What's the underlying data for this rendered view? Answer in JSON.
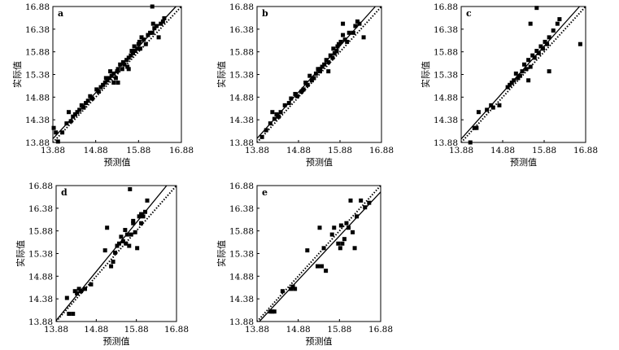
{
  "figure": {
    "x_axis_label": "预测值",
    "y_axis_label": "实际值"
  },
  "chart_data": [
    {
      "type": "scatter",
      "panel": "a",
      "xlabel": "预测值",
      "ylabel": "实际值",
      "xlim": [
        13.88,
        16.88
      ],
      "ylim": [
        13.88,
        16.88
      ],
      "xticks": [
        "13.88",
        "14.88",
        "15.88",
        "16.88"
      ],
      "yticks": [
        "13.88",
        "14.38",
        "14.88",
        "15.38",
        "15.88",
        "16.38",
        "16.88"
      ],
      "lines": [
        "solid",
        "dotted"
      ],
      "points": [
        [
          13.9,
          14.2
        ],
        [
          13.95,
          14.1
        ],
        [
          14.0,
          13.9
        ],
        [
          14.1,
          14.1
        ],
        [
          14.2,
          14.3
        ],
        [
          14.25,
          14.55
        ],
        [
          14.3,
          14.35
        ],
        [
          14.35,
          14.45
        ],
        [
          14.4,
          14.5
        ],
        [
          14.45,
          14.55
        ],
        [
          14.5,
          14.6
        ],
        [
          14.55,
          14.7
        ],
        [
          14.6,
          14.65
        ],
        [
          14.65,
          14.75
        ],
        [
          14.7,
          14.8
        ],
        [
          14.75,
          14.9
        ],
        [
          14.8,
          14.85
        ],
        [
          14.9,
          15.05
        ],
        [
          14.95,
          15.0
        ],
        [
          15.0,
          15.1
        ],
        [
          15.05,
          15.15
        ],
        [
          15.1,
          15.2
        ],
        [
          15.12,
          15.3
        ],
        [
          15.15,
          15.25
        ],
        [
          15.2,
          15.3
        ],
        [
          15.22,
          15.45
        ],
        [
          15.25,
          15.35
        ],
        [
          15.3,
          15.4
        ],
        [
          15.35,
          15.3
        ],
        [
          15.38,
          15.45
        ],
        [
          15.4,
          15.5
        ],
        [
          15.45,
          15.6
        ],
        [
          15.5,
          15.5
        ],
        [
          15.52,
          15.65
        ],
        [
          15.55,
          15.6
        ],
        [
          15.6,
          15.7
        ],
        [
          15.62,
          15.55
        ],
        [
          15.65,
          15.75
        ],
        [
          15.7,
          15.8
        ],
        [
          15.72,
          15.9
        ],
        [
          15.75,
          15.85
        ],
        [
          15.78,
          16.0
        ],
        [
          15.8,
          15.9
        ],
        [
          15.85,
          15.95
        ],
        [
          15.88,
          16.05
        ],
        [
          15.9,
          16.1
        ],
        [
          15.92,
          15.95
        ],
        [
          15.95,
          16.2
        ],
        [
          16.0,
          16.15
        ],
        [
          16.05,
          16.05
        ],
        [
          16.1,
          16.25
        ],
        [
          16.15,
          16.3
        ],
        [
          16.2,
          16.3
        ],
        [
          16.22,
          16.5
        ],
        [
          16.25,
          16.4
        ],
        [
          16.3,
          16.45
        ],
        [
          16.35,
          16.2
        ],
        [
          16.4,
          16.5
        ],
        [
          16.45,
          16.55
        ],
        [
          16.48,
          16.62
        ],
        [
          16.2,
          16.88
        ],
        [
          15.4,
          15.2
        ],
        [
          15.65,
          15.5
        ],
        [
          15.3,
          15.2
        ]
      ]
    },
    {
      "type": "scatter",
      "panel": "b",
      "xlabel": "预测值",
      "ylabel": "实际值",
      "xlim": [
        13.88,
        16.88
      ],
      "ylim": [
        13.88,
        16.88
      ],
      "xticks": [
        "13.88",
        "14.88",
        "15.88",
        "16.88"
      ],
      "yticks": [
        "13.88",
        "14.38",
        "14.88",
        "15.38",
        "15.88",
        "16.38",
        "16.88"
      ],
      "lines": [
        "solid",
        "dotted"
      ],
      "points": [
        [
          14.0,
          14.0
        ],
        [
          14.1,
          14.15
        ],
        [
          14.2,
          14.3
        ],
        [
          14.25,
          14.55
        ],
        [
          14.3,
          14.4
        ],
        [
          14.35,
          14.5
        ],
        [
          14.4,
          14.45
        ],
        [
          14.45,
          14.55
        ],
        [
          14.55,
          14.7
        ],
        [
          14.65,
          14.75
        ],
        [
          14.7,
          14.85
        ],
        [
          14.8,
          14.95
        ],
        [
          14.85,
          14.9
        ],
        [
          14.95,
          15.0
        ],
        [
          15.0,
          15.05
        ],
        [
          15.05,
          15.2
        ],
        [
          15.1,
          15.15
        ],
        [
          15.15,
          15.35
        ],
        [
          15.2,
          15.25
        ],
        [
          15.25,
          15.3
        ],
        [
          15.3,
          15.4
        ],
        [
          15.35,
          15.5
        ],
        [
          15.4,
          15.45
        ],
        [
          15.45,
          15.55
        ],
        [
          15.5,
          15.6
        ],
        [
          15.55,
          15.7
        ],
        [
          15.6,
          15.65
        ],
        [
          15.65,
          15.8
        ],
        [
          15.7,
          15.75
        ],
        [
          15.72,
          15.95
        ],
        [
          15.75,
          15.85
        ],
        [
          15.8,
          15.9
        ],
        [
          15.82,
          16.0
        ],
        [
          15.85,
          16.05
        ],
        [
          15.9,
          16.1
        ],
        [
          15.95,
          16.25
        ],
        [
          16.0,
          16.15
        ],
        [
          16.05,
          16.1
        ],
        [
          16.1,
          16.3
        ],
        [
          16.2,
          16.3
        ],
        [
          16.25,
          16.45
        ],
        [
          16.3,
          16.55
        ],
        [
          16.35,
          16.5
        ],
        [
          16.45,
          16.2
        ],
        [
          15.95,
          16.5
        ],
        [
          15.6,
          15.45
        ],
        [
          15.4,
          15.5
        ]
      ]
    },
    {
      "type": "scatter",
      "panel": "c",
      "xlabel": "预测值",
      "ylabel": "实际值",
      "xlim": [
        13.88,
        16.88
      ],
      "ylim": [
        13.88,
        16.88
      ],
      "xticks": [
        "13.88",
        "14.88",
        "15.88",
        "16.88"
      ],
      "yticks": [
        "13.88",
        "14.38",
        "14.88",
        "15.38",
        "15.88",
        "16.38",
        "16.88"
      ],
      "lines": [
        "solid",
        "dotted"
      ],
      "points": [
        [
          14.1,
          13.88
        ],
        [
          14.2,
          14.2
        ],
        [
          14.25,
          14.2
        ],
        [
          14.3,
          14.55
        ],
        [
          14.5,
          14.6
        ],
        [
          14.6,
          14.7
        ],
        [
          14.65,
          14.65
        ],
        [
          14.8,
          14.7
        ],
        [
          15.0,
          15.1
        ],
        [
          15.05,
          15.15
        ],
        [
          15.1,
          15.2
        ],
        [
          15.15,
          15.25
        ],
        [
          15.2,
          15.4
        ],
        [
          15.25,
          15.3
        ],
        [
          15.3,
          15.35
        ],
        [
          15.35,
          15.45
        ],
        [
          15.4,
          15.6
        ],
        [
          15.45,
          15.5
        ],
        [
          15.5,
          15.7
        ],
        [
          15.55,
          15.55
        ],
        [
          15.6,
          15.8
        ],
        [
          15.65,
          15.75
        ],
        [
          15.7,
          15.9
        ],
        [
          15.75,
          15.85
        ],
        [
          15.8,
          16.0
        ],
        [
          15.85,
          15.95
        ],
        [
          15.9,
          16.1
        ],
        [
          15.95,
          16.05
        ],
        [
          16.0,
          16.2
        ],
        [
          16.1,
          16.35
        ],
        [
          16.2,
          16.5
        ],
        [
          16.25,
          16.6
        ],
        [
          16.0,
          15.45
        ],
        [
          15.7,
          16.85
        ],
        [
          16.75,
          16.05
        ],
        [
          15.55,
          16.5
        ],
        [
          15.5,
          15.25
        ]
      ]
    },
    {
      "type": "scatter",
      "panel": "d",
      "xlabel": "预测值",
      "ylabel": "实际值",
      "xlim": [
        13.88,
        16.88
      ],
      "ylim": [
        13.88,
        16.88
      ],
      "xticks": [
        "13.88",
        "14.88",
        "15.88",
        "16.88"
      ],
      "yticks": [
        "13.88",
        "14.38",
        "14.88",
        "15.38",
        "15.88",
        "16.38",
        "16.88"
      ],
      "lines": [
        "solid",
        "dotted"
      ],
      "points": [
        [
          14.15,
          14.4
        ],
        [
          14.2,
          14.05
        ],
        [
          14.3,
          14.05
        ],
        [
          14.35,
          14.55
        ],
        [
          14.4,
          14.5
        ],
        [
          14.45,
          14.6
        ],
        [
          14.5,
          14.55
        ],
        [
          14.6,
          14.6
        ],
        [
          14.75,
          14.7
        ],
        [
          15.1,
          15.45
        ],
        [
          15.15,
          15.95
        ],
        [
          15.25,
          15.1
        ],
        [
          15.3,
          15.2
        ],
        [
          15.35,
          15.4
        ],
        [
          15.4,
          15.55
        ],
        [
          15.45,
          15.6
        ],
        [
          15.5,
          15.75
        ],
        [
          15.55,
          15.65
        ],
        [
          15.6,
          15.9
        ],
        [
          15.65,
          15.8
        ],
        [
          15.7,
          15.55
        ],
        [
          15.75,
          15.8
        ],
        [
          15.8,
          16.05
        ],
        [
          15.85,
          15.85
        ],
        [
          15.9,
          15.5
        ],
        [
          15.95,
          16.2
        ],
        [
          16.0,
          16.05
        ],
        [
          16.05,
          16.2
        ],
        [
          16.1,
          16.3
        ],
        [
          16.15,
          16.55
        ],
        [
          15.72,
          16.8
        ],
        [
          15.8,
          16.1
        ],
        [
          15.62,
          15.6
        ],
        [
          16.0,
          16.25
        ]
      ]
    },
    {
      "type": "scatter",
      "panel": "e",
      "xlabel": "预测值",
      "ylabel": "实际值",
      "xlim": [
        13.88,
        16.88
      ],
      "ylim": [
        13.88,
        16.88
      ],
      "xticks": [
        "13.88",
        "14.88",
        "15.88",
        "16.88"
      ],
      "yticks": [
        "13.88",
        "14.38",
        "14.88",
        "15.38",
        "15.88",
        "16.38",
        "16.88"
      ],
      "lines": [
        "solid",
        "dotted"
      ],
      "points": [
        [
          14.2,
          14.1
        ],
        [
          14.25,
          14.1
        ],
        [
          14.3,
          14.1
        ],
        [
          14.5,
          14.55
        ],
        [
          14.7,
          14.6
        ],
        [
          14.75,
          14.65
        ],
        [
          14.8,
          14.6
        ],
        [
          15.1,
          15.45
        ],
        [
          15.35,
          15.1
        ],
        [
          15.4,
          15.95
        ],
        [
          15.45,
          15.1
        ],
        [
          15.5,
          15.5
        ],
        [
          15.55,
          15.0
        ],
        [
          15.75,
          15.95
        ],
        [
          15.85,
          15.6
        ],
        [
          15.9,
          15.5
        ],
        [
          15.95,
          15.6
        ],
        [
          16.0,
          15.7
        ],
        [
          16.05,
          16.05
        ],
        [
          16.1,
          15.95
        ],
        [
          16.2,
          15.85
        ],
        [
          16.25,
          15.5
        ],
        [
          16.3,
          16.2
        ],
        [
          16.4,
          16.55
        ],
        [
          16.5,
          16.4
        ],
        [
          16.6,
          16.5
        ],
        [
          16.15,
          16.55
        ],
        [
          15.92,
          16.0
        ],
        [
          15.7,
          15.8
        ]
      ]
    }
  ]
}
